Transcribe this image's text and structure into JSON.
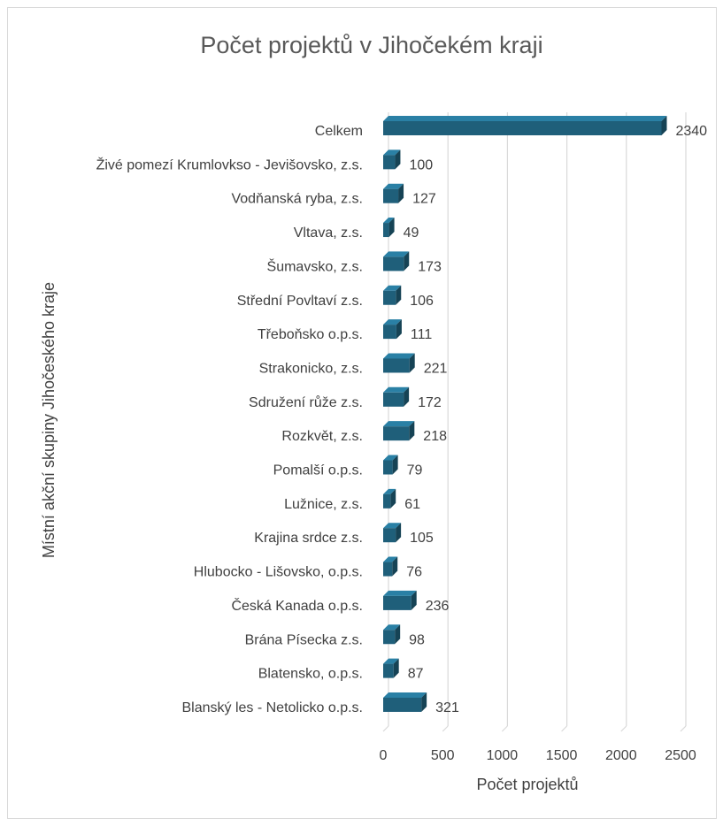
{
  "chart_data": {
    "type": "bar",
    "orientation": "horizontal",
    "style": "3d",
    "title": "Počet projektů v Jihočekém kraji",
    "xlabel": "Počet projektů",
    "ylabel": "Místní akční skupiny Jihočeského kraje",
    "xlim": [
      0,
      2500
    ],
    "xticks": [
      0,
      500,
      1000,
      1500,
      2000,
      2500
    ],
    "grid": true,
    "bar_color": "#1f5f7a",
    "categories": [
      "Celkem",
      "Živé pomezí Krumlovkso - Jevišovsko, z.s.",
      "Vodňanská ryba, z.s.",
      "Vltava, z.s.",
      "Šumavsko, z.s.",
      "Střední Povltaví z.s.",
      "Třeboňsko o.p.s.",
      "Strakonicko, z.s.",
      "Sdružení růže z.s.",
      "Rozkvět, z.s.",
      "Pomalší o.p.s.",
      "Lužnice, z.s.",
      "Krajina srdce z.s.",
      "Hlubocko - Lišovsko, o.p.s.",
      "Česká Kanada o.p.s.",
      "Brána Písecka z.s.",
      "Blatensko, o.p.s.",
      "Blanský les - Netolicko o.p.s."
    ],
    "values": [
      2340,
      100,
      127,
      49,
      173,
      106,
      111,
      221,
      172,
      218,
      79,
      61,
      105,
      76,
      236,
      98,
      87,
      321
    ]
  }
}
